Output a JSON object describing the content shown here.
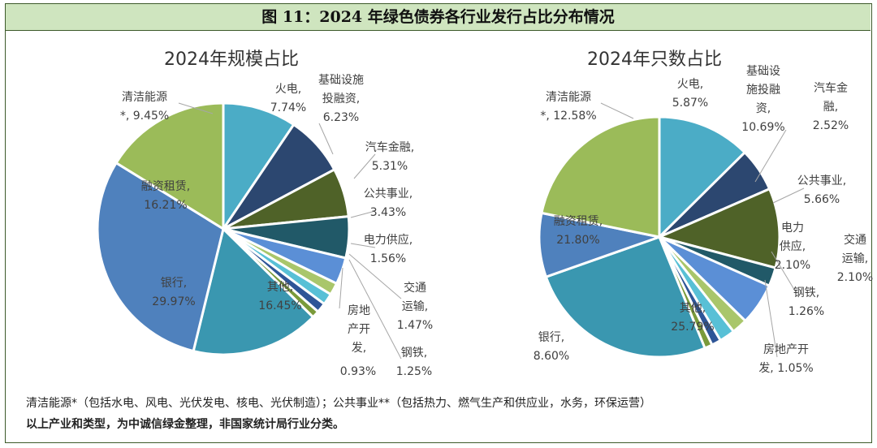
{
  "header": {
    "title": "图 11：2024 年绿色债券各行业发行占比分布情况"
  },
  "chart_data": [
    {
      "type": "pie",
      "title": "2024年规模占比",
      "slices": [
        {
          "label": "清洁能源*",
          "value": 9.45,
          "value_text": "9.45%",
          "color": "#4bacc6"
        },
        {
          "label": "火电",
          "value": 7.74,
          "value_text": "7.74%",
          "color": "#2c4770"
        },
        {
          "label": "基础设施投融资",
          "value": 6.23,
          "value_text": "6.23%",
          "color": "#4f6228"
        },
        {
          "label": "汽车金融",
          "value": 5.31,
          "value_text": "5.31%",
          "color": "#215968"
        },
        {
          "label": "公共事业",
          "value": 3.43,
          "value_text": "3.43%",
          "color": "#5b8fd6"
        },
        {
          "label": "电力供应",
          "value": 1.56,
          "value_text": "1.56%",
          "color": "#a9c66b"
        },
        {
          "label": "交通运输",
          "value": 1.47,
          "value_text": "1.47%",
          "color": "#58c0d6"
        },
        {
          "label": "钢铁",
          "value": 1.25,
          "value_text": "1.25%",
          "color": "#2e5597"
        },
        {
          "label": "房地产开发",
          "value": 0.93,
          "value_text": "0.93%",
          "color": "#7a9a3a"
        },
        {
          "label": "其他",
          "value": 16.45,
          "value_text": "16.45%",
          "color": "#3a97b0"
        },
        {
          "label": "银行",
          "value": 29.97,
          "value_text": "29.97%",
          "color": "#4f81bd"
        },
        {
          "label": "融资租赁",
          "value": 16.21,
          "value_text": "16.21%",
          "color": "#9bbb59"
        }
      ],
      "labels": [
        "清洁能源",
        "*, 9.45%",
        "火电,",
        "7.74%",
        "基础设施",
        "投融资,",
        "6.23%",
        "汽车金融,",
        "5.31%",
        "公共事业,",
        "3.43%",
        "电力供应,",
        "1.56%",
        "交通",
        "运输,",
        "1.47%",
        "钢铁,",
        "1.25%",
        "房地",
        "产开",
        "发,",
        "0.93%",
        "其他,",
        "16.45%",
        "银行,",
        "29.97%",
        "融资租赁,",
        "16.21%"
      ]
    },
    {
      "type": "pie",
      "title": "2024年只数占比",
      "slices": [
        {
          "label": "清洁能源*",
          "value": 12.58,
          "value_text": "12.58%",
          "color": "#4bacc6"
        },
        {
          "label": "火电",
          "value": 5.87,
          "value_text": "5.87%",
          "color": "#2c4770"
        },
        {
          "label": "基础设施投融资",
          "value": 10.69,
          "value_text": "10.69%",
          "color": "#4f6228"
        },
        {
          "label": "汽车金融",
          "value": 2.52,
          "value_text": "2.52%",
          "color": "#215968"
        },
        {
          "label": "公共事业",
          "value": 5.66,
          "value_text": "5.66%",
          "color": "#5b8fd6"
        },
        {
          "label": "电力供应",
          "value": 2.1,
          "value_text": "2.10%",
          "color": "#a9c66b"
        },
        {
          "label": "交通运输",
          "value": 2.1,
          "value_text": "2.10%",
          "color": "#58c0d6"
        },
        {
          "label": "钢铁",
          "value": 1.26,
          "value_text": "1.26%",
          "color": "#2e5597"
        },
        {
          "label": "房地产开发",
          "value": 1.05,
          "value_text": "1.05%",
          "color": "#7a9a3a"
        },
        {
          "label": "其他",
          "value": 25.79,
          "value_text": "25.79%",
          "color": "#3a97b0"
        },
        {
          "label": "银行",
          "value": 8.6,
          "value_text": "8.60%",
          "color": "#4f81bd"
        },
        {
          "label": "融资租赁",
          "value": 21.8,
          "value_text": "21.80%",
          "color": "#9bbb59"
        }
      ],
      "labels": [
        "清洁能源",
        "*, 12.58%",
        "火电,",
        "5.87%",
        "基础设",
        "施投融",
        "资,",
        "10.69%",
        "汽车金",
        "融,",
        "2.52%",
        "公共事业,",
        "5.66%",
        "电力",
        "供应,",
        "2.10%",
        "交通",
        "运输,",
        "2.10%",
        "钢铁,",
        "1.26%",
        "房地产开",
        "发, 1.05%",
        "其他,",
        "25.79%",
        "银行,",
        "8.60%",
        "融资租赁,",
        "21.80%"
      ]
    }
  ],
  "notes": {
    "line1": "清洁能源*（包括水电、风电、光伏发电、核电、光伏制造）；公共事业**（包括热力、燃气生产和供应业，水务，环保运营）",
    "line2": "以上产业和类型，为中诚信绿金整理，非国家统计局行业分类。"
  }
}
